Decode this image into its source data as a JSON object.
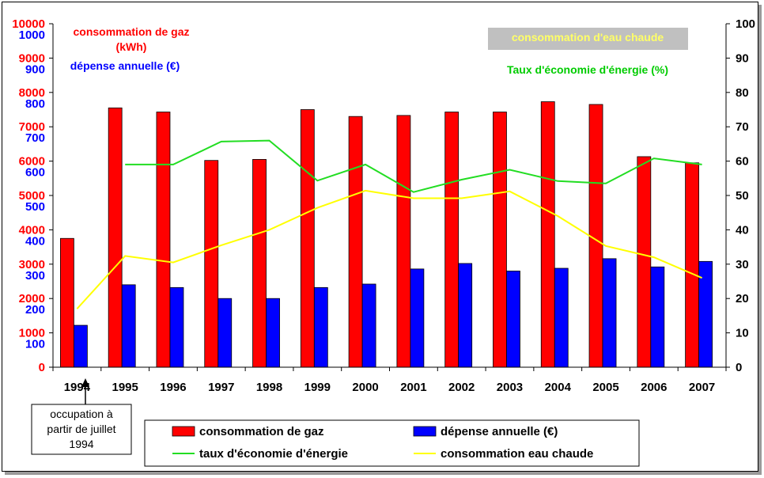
{
  "chart_data": {
    "type": "bar",
    "categories": [
      "1994",
      "1995",
      "1996",
      "1997",
      "1998",
      "1999",
      "2000",
      "2001",
      "2002",
      "2003",
      "2004",
      "2005",
      "2006",
      "2007"
    ],
    "series": [
      {
        "name": "consommation de gaz",
        "kind": "bar",
        "axis": "left-kwh",
        "color": "#ff0000",
        "values": [
          3750,
          7550,
          7430,
          6020,
          6050,
          7500,
          7300,
          7330,
          7430,
          7430,
          7730,
          7650,
          6130,
          5950
        ]
      },
      {
        "name": "dépense annuelle (€)",
        "kind": "bar",
        "axis": "left-eur",
        "color": "#0000ff",
        "values": [
          122,
          240,
          232,
          200,
          200,
          232,
          242,
          286,
          302,
          280,
          288,
          316,
          292,
          308
        ]
      },
      {
        "name": "taux d'économie d'énergie",
        "kind": "line",
        "axis": "right-pct",
        "color": "#22dd22",
        "values": [
          null,
          59,
          59,
          65.7,
          66,
          54.3,
          59,
          51,
          54.6,
          57.5,
          54.2,
          53.5,
          60.8,
          59
        ]
      },
      {
        "name": "consommation eau chaude",
        "kind": "line",
        "axis": "right-pct",
        "color": "#ffff00",
        "values": [
          17,
          32.4,
          30.5,
          35.5,
          40,
          46.4,
          51.4,
          49.2,
          49.2,
          51.2,
          44,
          35.3,
          32,
          26
        ]
      }
    ],
    "axes": {
      "left_kwh": {
        "range": [
          0,
          10000
        ],
        "ticks": [
          "0",
          "1000",
          "2000",
          "3000",
          "4000",
          "5000",
          "6000",
          "7000",
          "8000",
          "9000",
          "10000"
        ],
        "color": "#ff0000"
      },
      "left_eur": {
        "range": [
          0,
          1000
        ],
        "ticks": [
          "100",
          "200",
          "300",
          "400",
          "500",
          "600",
          "700",
          "800",
          "900",
          "1000"
        ],
        "color": "#0000ff"
      },
      "right_pct": {
        "range": [
          0,
          100
        ],
        "ticks": [
          "0",
          "10",
          "20",
          "30",
          "40",
          "50",
          "60",
          "70",
          "80",
          "90",
          "100"
        ]
      }
    },
    "annotations": {
      "gaz_label": "consommation de gaz",
      "gaz_unit": "(kWh)",
      "depense_label": "dépense annuelle (€)",
      "eau_label": "consommation d'eau chaude",
      "taux_label": "Taux d'économie d'énergie (%)",
      "note": [
        "occupation à",
        "partir de juillet",
        "1994"
      ]
    },
    "legend": {
      "placement": "bottom",
      "items": [
        {
          "label": "consommation de gaz",
          "color": "#ff0000",
          "kind": "bar"
        },
        {
          "label": "dépense annuelle (€)",
          "color": "#0000ff",
          "kind": "bar"
        },
        {
          "label": "taux d'économie d'énergie",
          "color": "#22dd22",
          "kind": "line"
        },
        {
          "label": "consommation eau chaude",
          "color": "#ffff00",
          "kind": "line"
        }
      ]
    },
    "grid": false
  }
}
